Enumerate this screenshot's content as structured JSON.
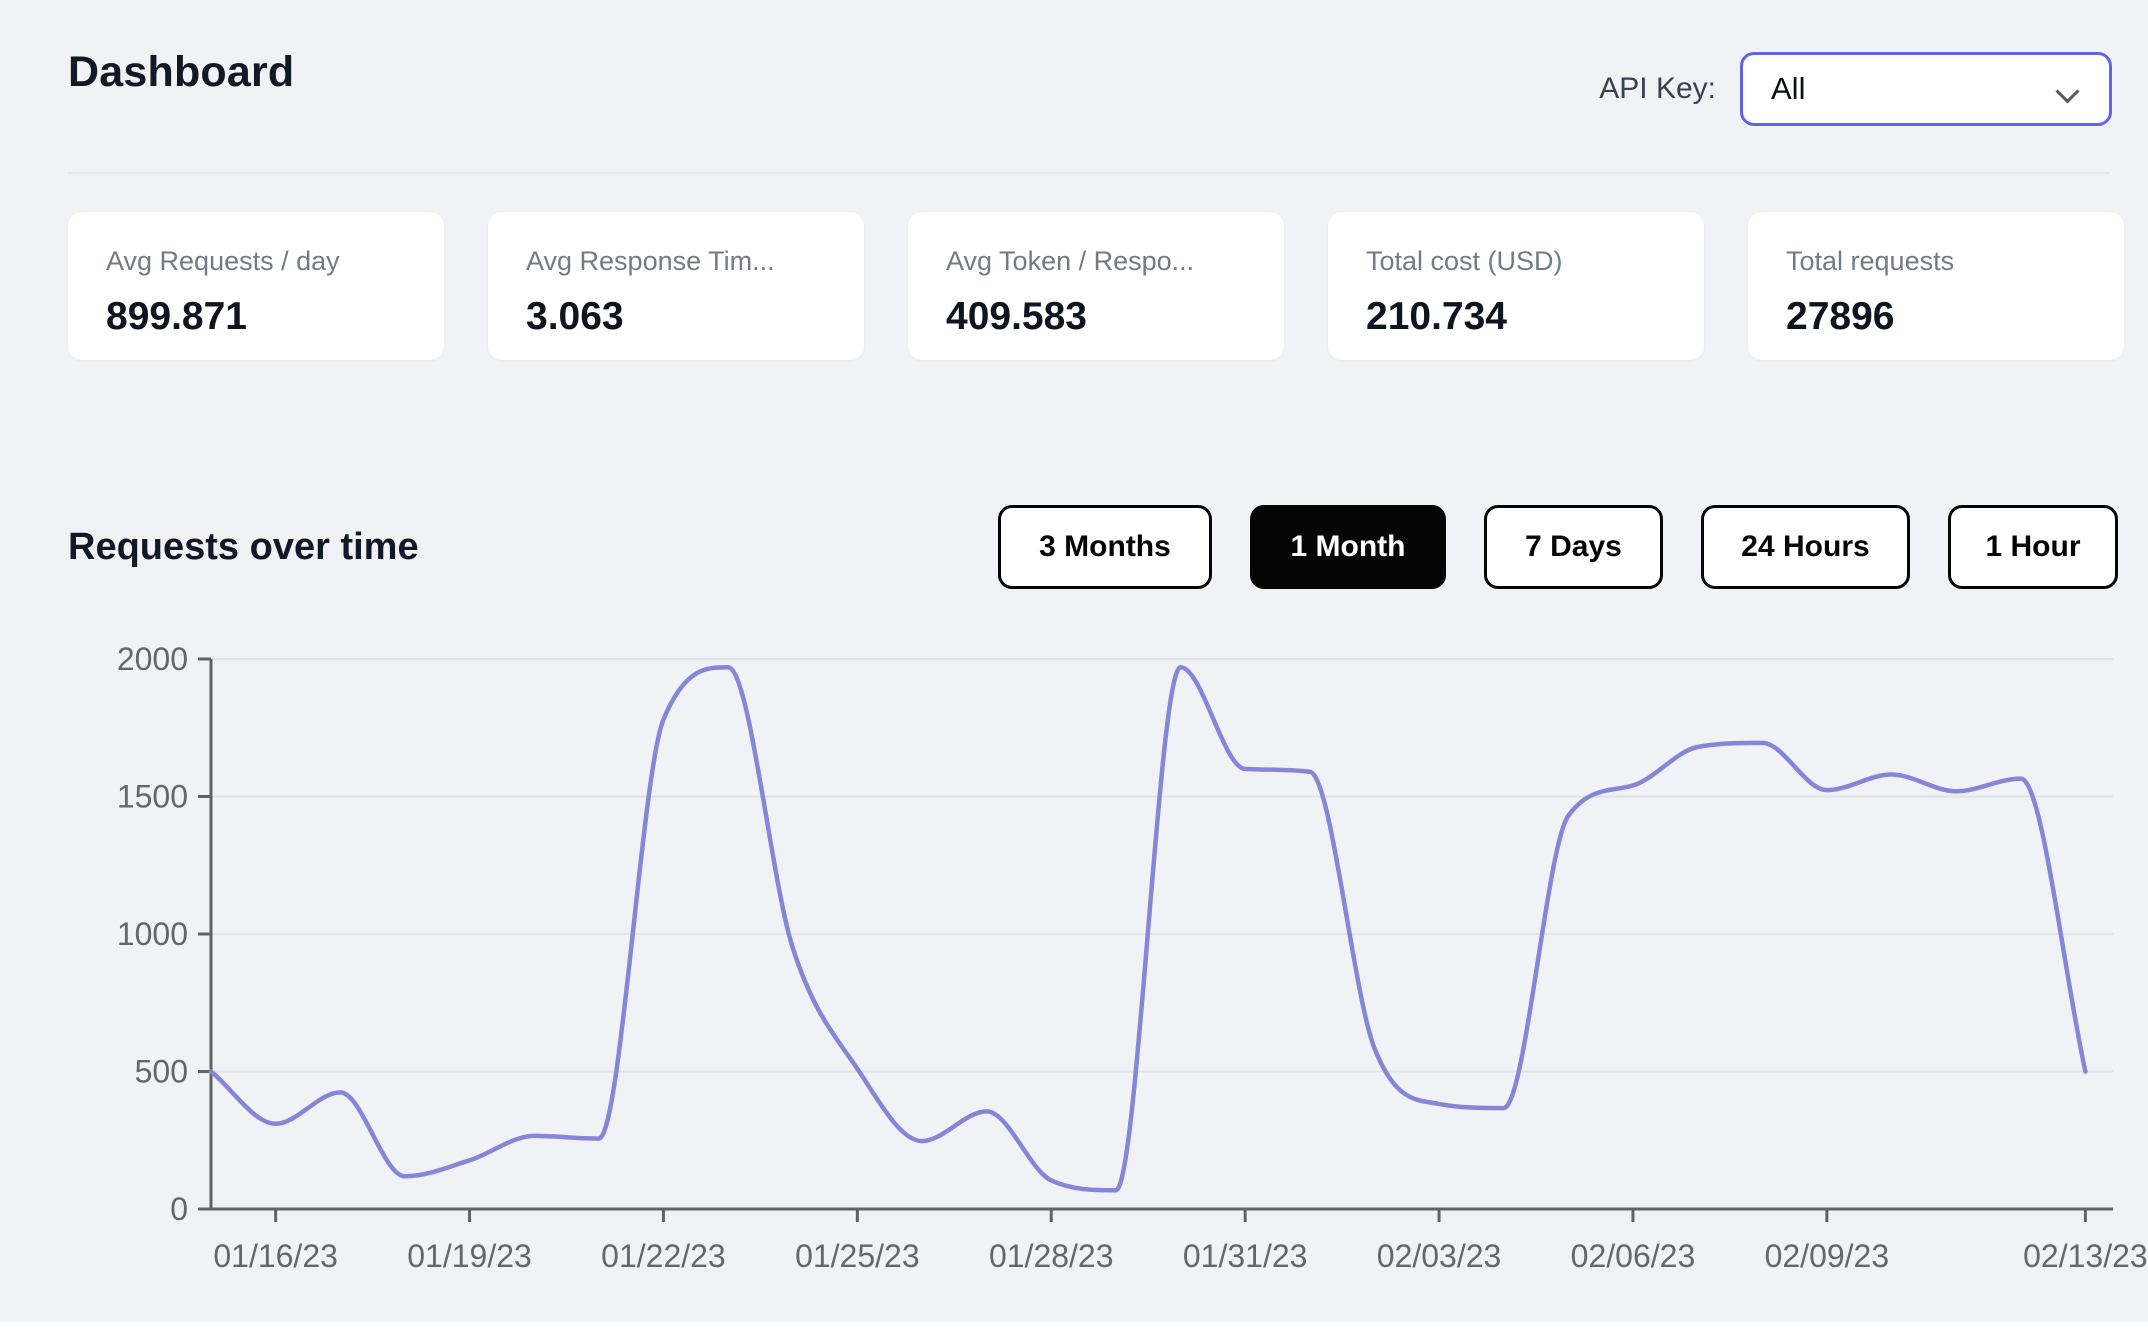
{
  "page": {
    "title": "Dashboard",
    "api_key_label": "API Key:",
    "api_key_value": "All"
  },
  "stats": [
    {
      "label": "Avg Requests / day",
      "value": "899.871"
    },
    {
      "label": "Avg Response Tim...",
      "value": "3.063"
    },
    {
      "label": "Avg Token / Respo...",
      "value": "409.583"
    },
    {
      "label": "Total cost (USD)",
      "value": "210.734"
    },
    {
      "label": "Total requests",
      "value": "27896"
    }
  ],
  "section": {
    "title": "Requests over time"
  },
  "range_buttons": [
    {
      "label": "3 Months",
      "active": false
    },
    {
      "label": "1 Month",
      "active": true
    },
    {
      "label": "7 Days",
      "active": false
    },
    {
      "label": "24 Hours",
      "active": false
    },
    {
      "label": "1 Hour",
      "active": false
    }
  ],
  "chart_data": {
    "type": "line",
    "title": "Requests over time",
    "x": [
      "01/15/23",
      "01/16/23",
      "01/17/23",
      "01/18/23",
      "01/19/23",
      "01/20/23",
      "01/21/23",
      "01/22/23",
      "01/23/23",
      "01/24/23",
      "01/25/23",
      "01/26/23",
      "01/27/23",
      "01/28/23",
      "01/29/23",
      "01/30/23",
      "01/31/23",
      "02/01/23",
      "02/02/23",
      "02/03/23",
      "02/04/23",
      "02/05/23",
      "02/06/23",
      "02/07/23",
      "02/08/23",
      "02/09/23",
      "02/10/23",
      "02/11/23",
      "02/12/23",
      "02/13/23"
    ],
    "series": [
      {
        "name": "requests",
        "color": "#8884d8",
        "values": [
          500,
          310,
          424,
          119,
          177,
          266,
          256,
          1780,
          1970,
          950,
          510,
          247,
          355,
          104,
          68,
          1970,
          1600,
          1590,
          585,
          382,
          367,
          1430,
          1540,
          1680,
          1695,
          1523,
          1580,
          1519,
          1565,
          500
        ]
      }
    ],
    "x_tick_indices": [
      1,
      4,
      7,
      10,
      13,
      16,
      19,
      22,
      25,
      29
    ],
    "x_tick_labels": [
      "01/16/23",
      "01/19/23",
      "01/22/23",
      "01/25/23",
      "01/28/23",
      "01/31/23",
      "02/03/23",
      "02/06/23",
      "02/09/23",
      "02/13/23"
    ],
    "y_ticks": [
      0,
      500,
      1000,
      1500,
      2000
    ],
    "ylim": [
      0,
      2000
    ],
    "grid": "horizontal",
    "line_type": "monotone",
    "legend": "none",
    "axis_color": "#5f6368",
    "tick_label_color": "#63676d",
    "grid_color": "#e2e3e7"
  }
}
